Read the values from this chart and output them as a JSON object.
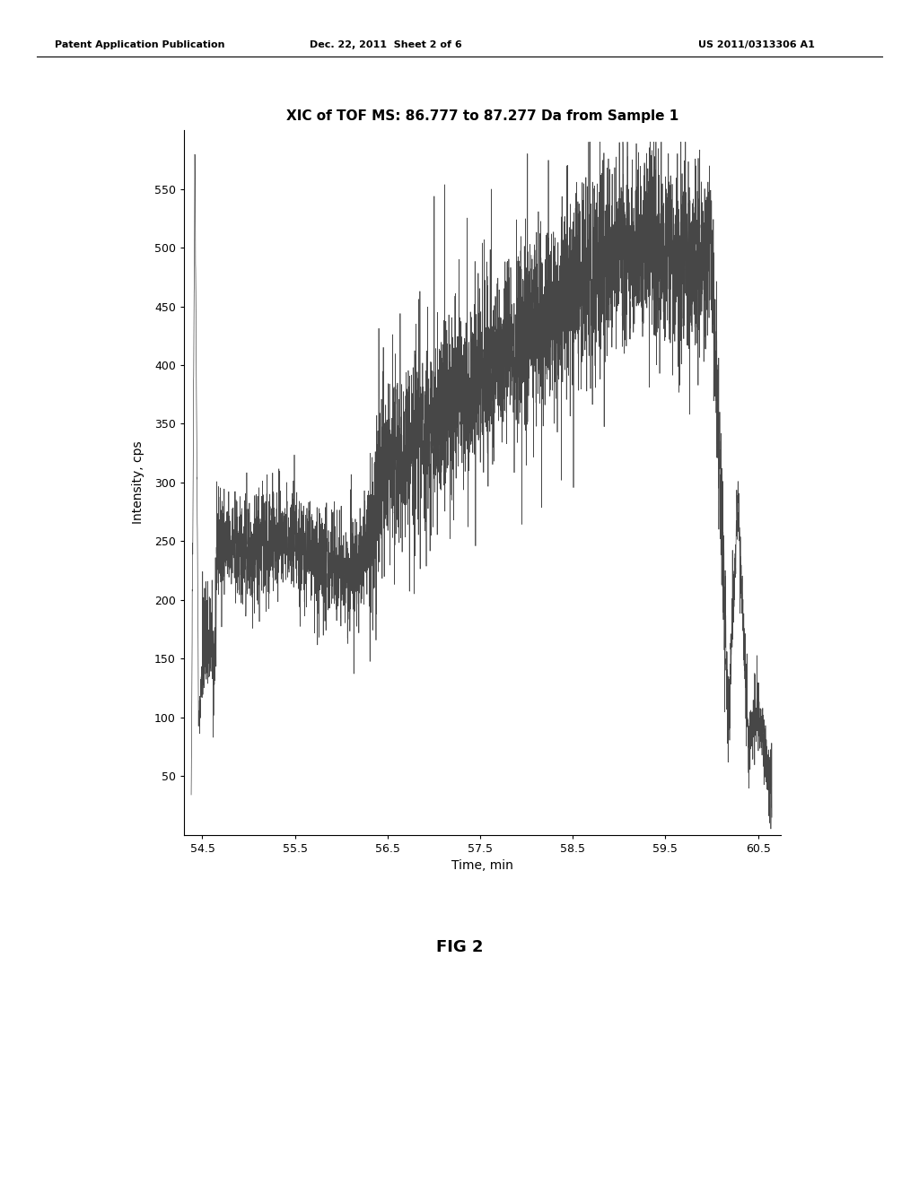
{
  "title": "XIC of TOF MS: 86.777 to 87.277 Da from Sample 1",
  "xlabel": "Time, min",
  "ylabel": "Intensity, cps",
  "xlim": [
    54.3,
    60.75
  ],
  "ylim": [
    0,
    600
  ],
  "xticks": [
    54.5,
    55.5,
    56.5,
    57.5,
    58.5,
    59.5,
    60.5
  ],
  "yticks": [
    50,
    100,
    150,
    200,
    250,
    300,
    350,
    400,
    450,
    500,
    550
  ],
  "x_start": 54.38,
  "x_end": 60.65,
  "background_color": "#ffffff",
  "line_color": "#333333",
  "header_left": "Patent Application Publication",
  "header_center": "Dec. 22, 2011  Sheet 2 of 6",
  "header_right": "US 2011/0313306 A1",
  "fig_label": "FIG 2",
  "seed": 42,
  "title_fontsize": 11,
  "axis_fontsize": 10,
  "tick_fontsize": 9
}
